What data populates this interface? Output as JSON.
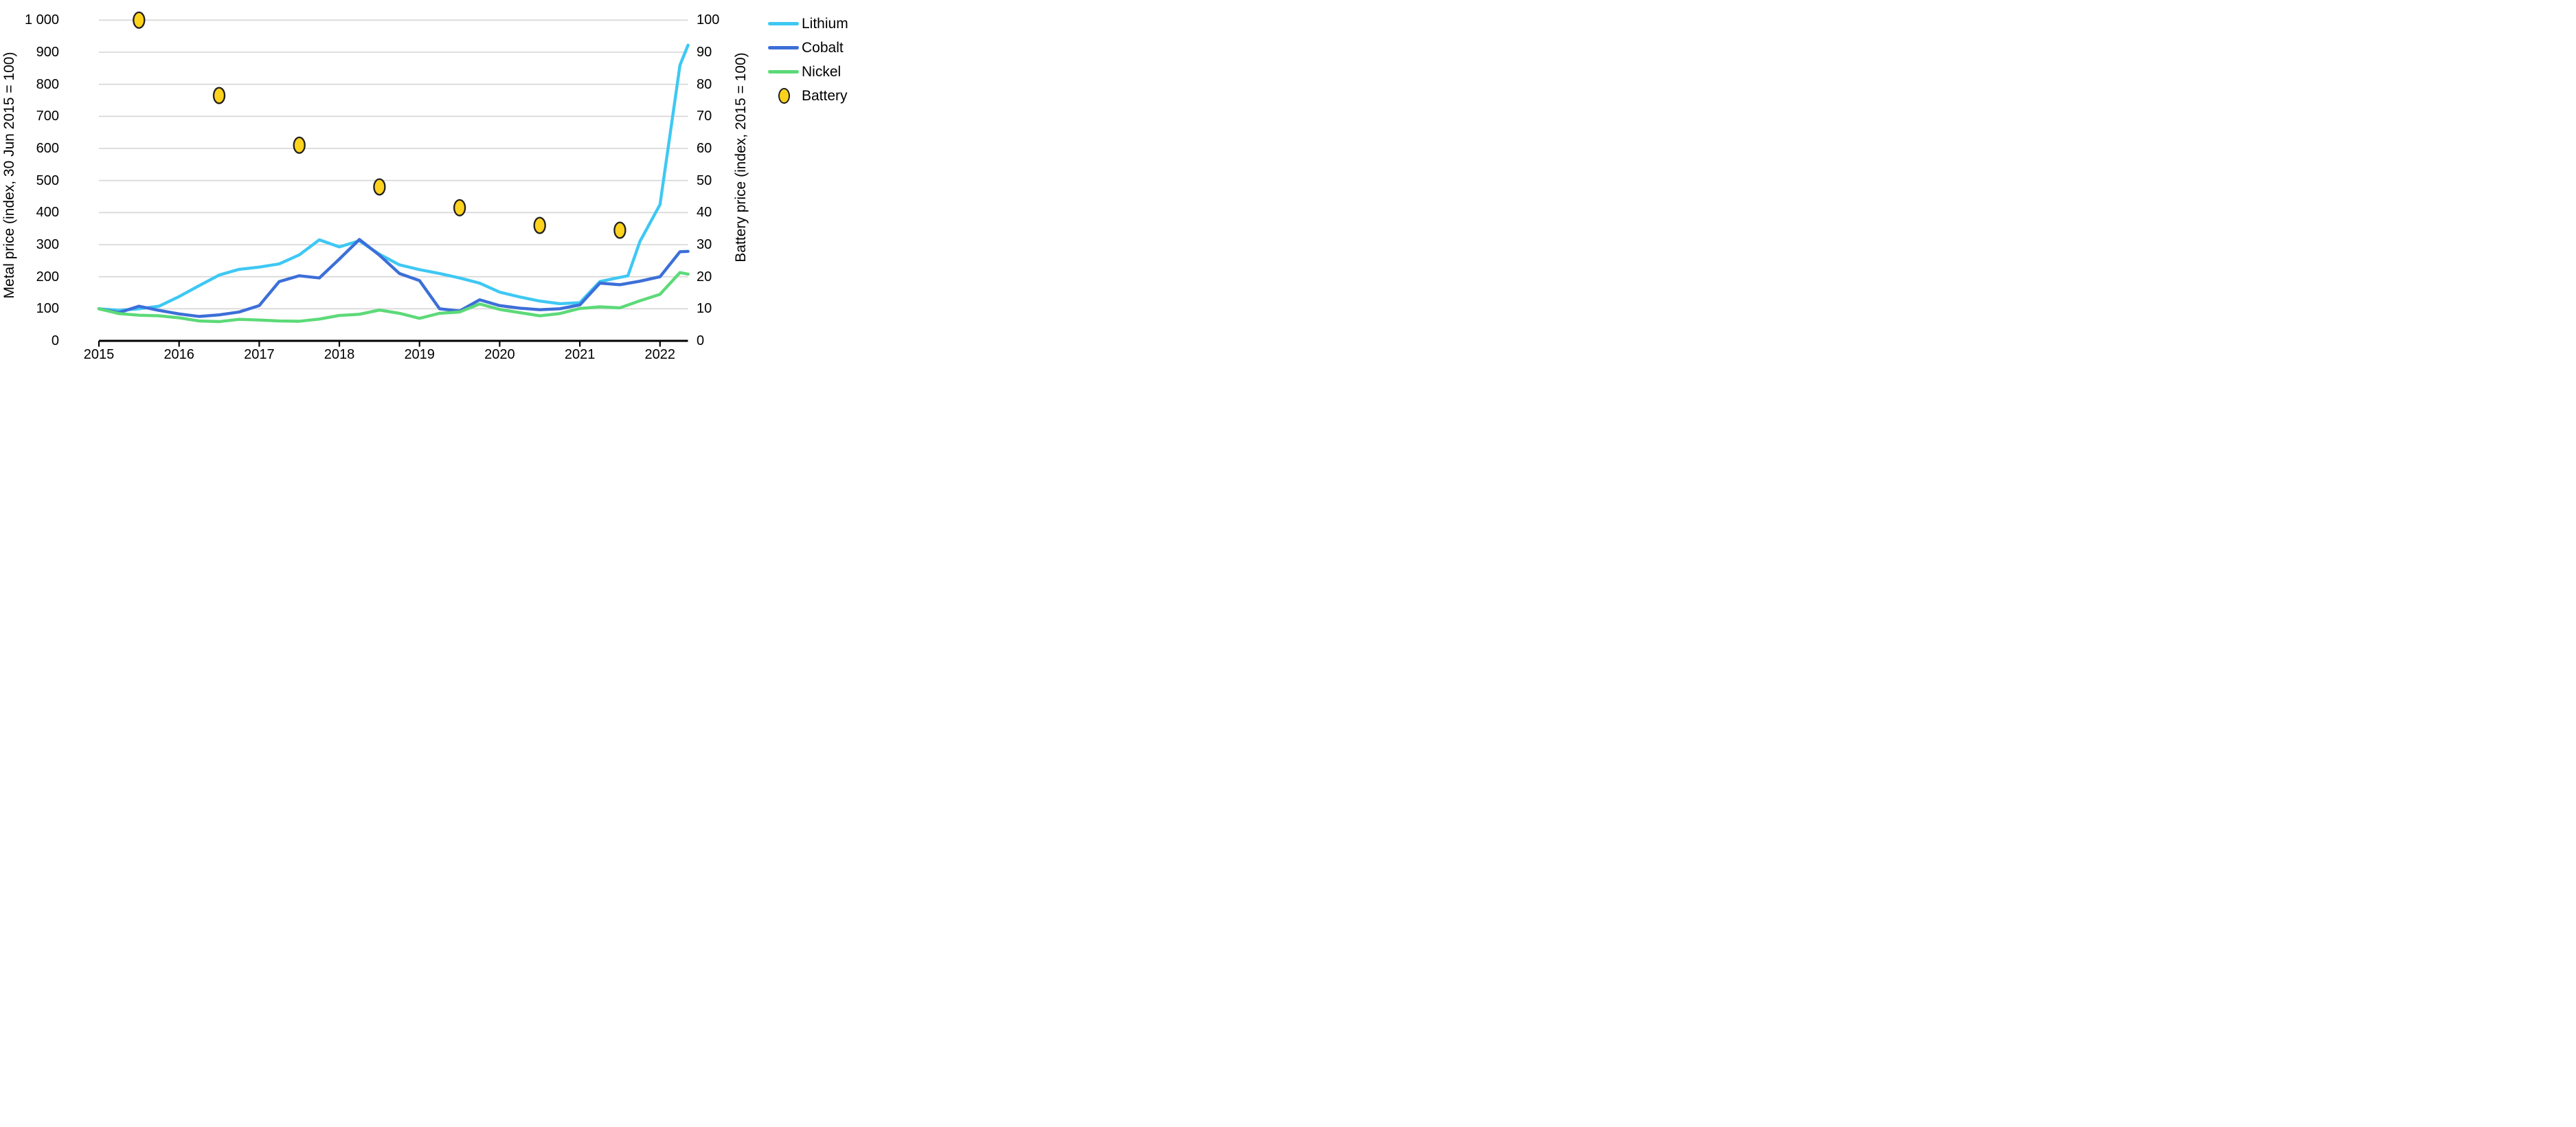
{
  "chart_data": {
    "type": "line",
    "title": "",
    "grid": "horizontal",
    "colors": {
      "lithium": "#3EC8F4",
      "cobalt": "#3C6FD8",
      "nickel": "#5CDA78",
      "battery_fill": "#FFD21E",
      "battery_stroke": "#1f1f1f",
      "gridline": "#D9D9D9",
      "axis": "#000000"
    },
    "left_axis": {
      "label": "Metal price (index, 30 Jun 2015 = 100)",
      "min": 0,
      "max": 1000,
      "step": 100,
      "ticks": [
        "0",
        "100",
        "200",
        "300",
        "400",
        "500",
        "600",
        "700",
        "800",
        "900",
        "1 000"
      ]
    },
    "right_axis": {
      "label": "Battery price (index, 2015 = 100)",
      "min": 0,
      "max": 100,
      "step": 10,
      "ticks": [
        "0",
        "10",
        "20",
        "30",
        "40",
        "50",
        "60",
        "70",
        "80",
        "90",
        "100"
      ]
    },
    "x_axis": {
      "min": 2015,
      "max": 2022.38,
      "ticks": [
        "2015",
        "2016",
        "2017",
        "2018",
        "2019",
        "2020",
        "2021",
        "2022"
      ]
    },
    "series": [
      {
        "name": "Lithium",
        "axis": "left",
        "x": [
          2015,
          2015.25,
          2015.5,
          2015.75,
          2016,
          2016.25,
          2016.5,
          2016.75,
          2017,
          2017.25,
          2017.5,
          2017.75,
          2018,
          2018.25,
          2018.5,
          2018.75,
          2019,
          2019.25,
          2019.5,
          2019.75,
          2020,
          2020.25,
          2020.5,
          2020.75,
          2021,
          2021.25,
          2021.5,
          2021.6,
          2021.75,
          2022,
          2022.25,
          2022.35
        ],
        "values": [
          100,
          95,
          100,
          108,
          138,
          172,
          205,
          223,
          230,
          240,
          268,
          315,
          293,
          312,
          270,
          237,
          222,
          210,
          196,
          180,
          152,
          137,
          124,
          116,
          119,
          185,
          198,
          203,
          310,
          425,
          860,
          922
        ]
      },
      {
        "name": "Cobalt",
        "axis": "left",
        "x": [
          2015,
          2015.25,
          2015.5,
          2015.75,
          2016,
          2016.25,
          2016.5,
          2016.75,
          2017,
          2017.25,
          2017.5,
          2017.75,
          2018,
          2018.25,
          2018.5,
          2018.75,
          2019,
          2019.25,
          2019.5,
          2019.75,
          2020,
          2020.25,
          2020.5,
          2020.75,
          2021,
          2021.25,
          2021.5,
          2021.75,
          2022,
          2022.25,
          2022.35
        ],
        "values": [
          100,
          88,
          108,
          95,
          84,
          76,
          81,
          90,
          110,
          185,
          203,
          196,
          255,
          316,
          267,
          210,
          188,
          100,
          93,
          128,
          110,
          102,
          97,
          100,
          112,
          180,
          175,
          186,
          200,
          278,
          279
        ]
      },
      {
        "name": "Nickel",
        "axis": "left",
        "x": [
          2015,
          2015.25,
          2015.5,
          2015.75,
          2016,
          2016.25,
          2016.5,
          2016.75,
          2017,
          2017.25,
          2017.5,
          2017.75,
          2018,
          2018.25,
          2018.5,
          2018.75,
          2019,
          2019.25,
          2019.5,
          2019.75,
          2020,
          2020.25,
          2020.5,
          2020.75,
          2021,
          2021.25,
          2021.5,
          2021.75,
          2022,
          2022.25,
          2022.35
        ],
        "values": [
          100,
          85,
          80,
          78,
          72,
          62,
          60,
          67,
          65,
          62,
          61,
          68,
          79,
          83,
          96,
          86,
          70,
          86,
          90,
          115,
          98,
          88,
          78,
          85,
          101,
          106,
          103,
          125,
          145,
          213,
          208
        ]
      }
    ],
    "scatter": {
      "name": "Battery",
      "axis": "right",
      "x": [
        2015.5,
        2016.5,
        2017.5,
        2018.5,
        2019.5,
        2020.5,
        2021.5
      ],
      "values": [
        100,
        76.5,
        61,
        48,
        41.5,
        36,
        34.5
      ]
    },
    "legend": {
      "entries": [
        "Lithium",
        "Cobalt",
        "Nickel",
        "Battery"
      ],
      "position": "top-right"
    }
  }
}
